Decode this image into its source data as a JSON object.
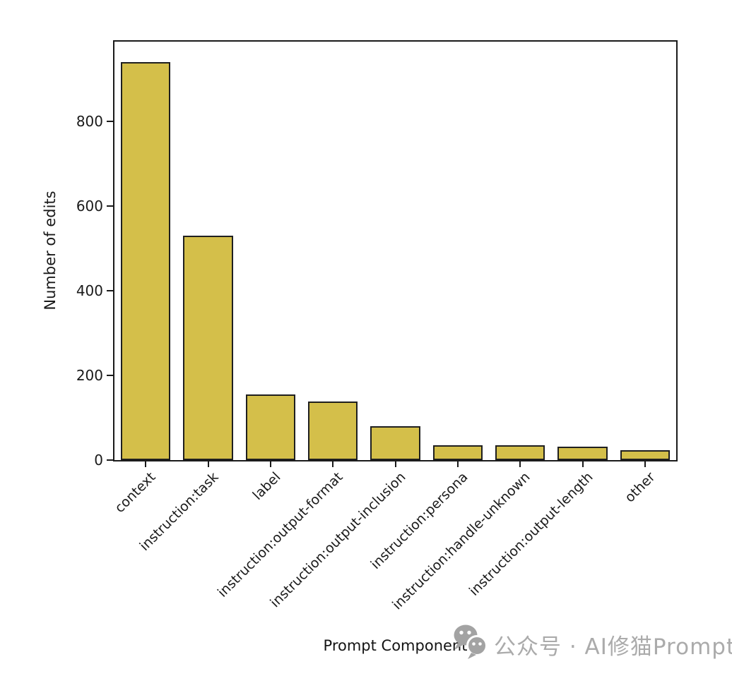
{
  "chart_data": {
    "type": "bar",
    "title": "",
    "xlabel": "Prompt Component",
    "ylabel": "Number of edits",
    "categories": [
      "context",
      "instruction:task",
      "label",
      "instruction:output-format",
      "instruction:output-inclusion",
      "instruction:persona",
      "instruction:handle-unknown",
      "instruction:output-length",
      "other"
    ],
    "values": [
      940,
      530,
      155,
      138,
      80,
      35,
      35,
      32,
      24
    ],
    "ylim": [
      0,
      988
    ],
    "yticks": [
      0,
      200,
      400,
      600,
      800
    ],
    "bar_color": "#d4bf4a",
    "bar_edge_color": "#1f1f1f",
    "grid": false,
    "legend_position": "none"
  },
  "watermark": {
    "icon": "wechat-icon",
    "text": "公众号 · AI修猫Prompt",
    "color": "#ababab"
  }
}
